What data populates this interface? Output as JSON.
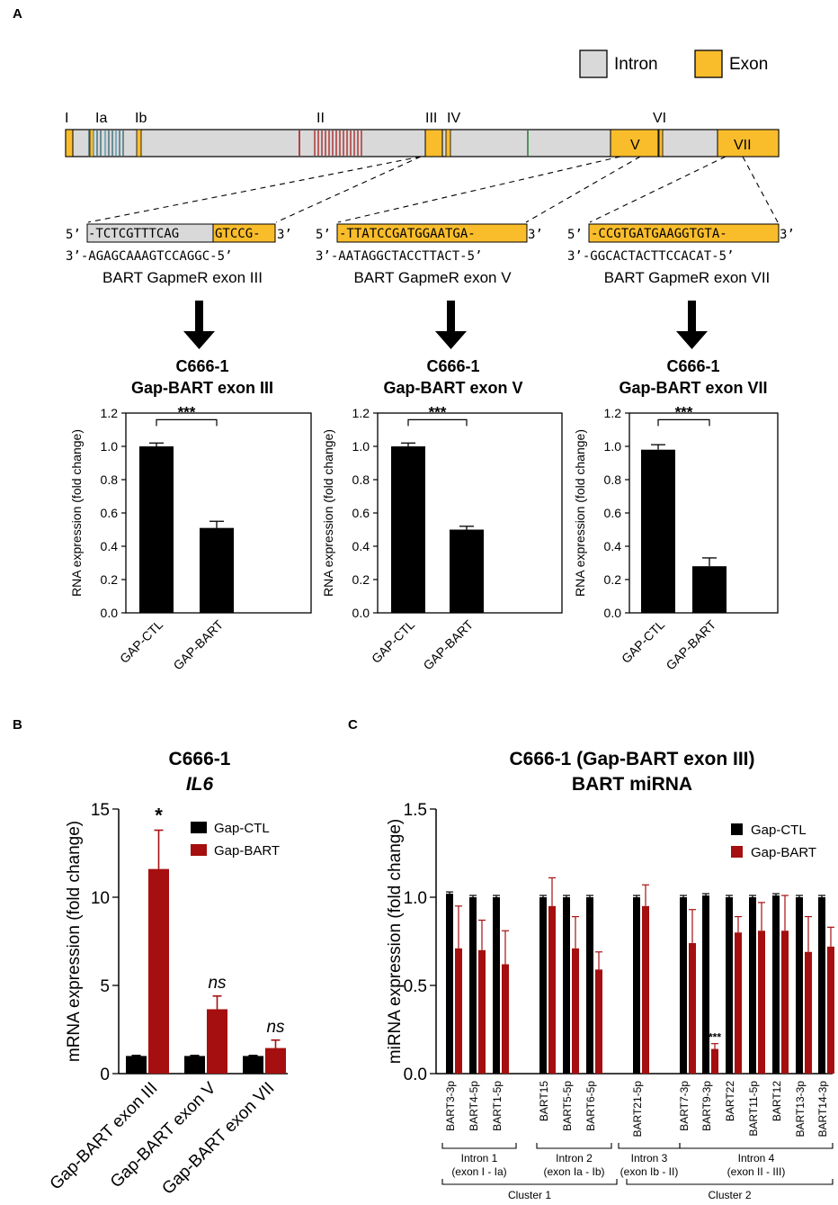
{
  "panels": {
    "a": "A",
    "b": "B",
    "c": "C"
  },
  "legend_a": {
    "intron": "Intron",
    "exon": "Exon"
  },
  "exon_labels": [
    "I",
    "Ia",
    "Ib",
    "II",
    "III",
    "IV",
    "V",
    "VI",
    "VII"
  ],
  "gapmers": [
    {
      "top_gray": "-TCTCGTTTCAG",
      "top_yellow": "GTCCG-",
      "bottom": "3’-AGAGCAAAGTCCAGGC-5’",
      "name": "BART GapmeR exon III"
    },
    {
      "top_gray": "",
      "top_yellow": "-TTATCCGATGGAATGA-",
      "bottom": "3’-AATAGGCTACCTTACT-5’",
      "name": "BART GapmeR exon V"
    },
    {
      "top_gray": "",
      "top_yellow": "-CCGTGATGAAGGTGTA-",
      "bottom": "3’-GGCACTACTTCCACAT-5’",
      "name": "BART GapmeR exon VII"
    }
  ],
  "strand": {
    "five": "5’",
    "three": "3’"
  },
  "colors": {
    "intron": "#d9d9d9",
    "exon": "#f9bd2c",
    "ctl": "#000000",
    "bart": "#a50f0f",
    "mirna_line": "#1f6f8b"
  },
  "chart_data": [
    {
      "type": "bar",
      "title": "C666-1",
      "subtitle": "Gap-BART exon III",
      "categories": [
        "GAP-CTL",
        "GAP-BART"
      ],
      "values": [
        1.0,
        0.51
      ],
      "errors": [
        0.02,
        0.04
      ],
      "ylabel": "RNA expression (fold change)",
      "ylim": [
        0,
        1.2
      ],
      "yticks": [
        "0.0",
        "0.2",
        "0.4",
        "0.6",
        "0.8",
        "1.0",
        "1.2"
      ],
      "annotation": "***"
    },
    {
      "type": "bar",
      "title": "C666-1",
      "subtitle": "Gap-BART exon V",
      "categories": [
        "GAP-CTL",
        "GAP-BART"
      ],
      "values": [
        1.0,
        0.5
      ],
      "errors": [
        0.02,
        0.02
      ],
      "ylabel": "RNA expression (fold change)",
      "ylim": [
        0,
        1.2
      ],
      "yticks": [
        "0.0",
        "0.2",
        "0.4",
        "0.6",
        "0.8",
        "1.0",
        "1.2"
      ],
      "annotation": "***"
    },
    {
      "type": "bar",
      "title": "C666-1",
      "subtitle": "Gap-BART exon VII",
      "categories": [
        "GAP-CTL",
        "GAP-BART"
      ],
      "values": [
        0.98,
        0.28
      ],
      "errors": [
        0.03,
        0.05
      ],
      "ylabel": "RNA expression (fold change)",
      "ylim": [
        0,
        1.2
      ],
      "yticks": [
        "0.0",
        "0.2",
        "0.4",
        "0.6",
        "0.8",
        "1.0",
        "1.2"
      ],
      "annotation": "***"
    },
    {
      "type": "bar",
      "title": "C666-1",
      "subtitle": "IL6",
      "categories": [
        "Gap-BART exon III",
        "Gap-BART exon V",
        "Gap-BART exon VII"
      ],
      "series": [
        {
          "name": "Gap-CTL",
          "values": [
            1.0,
            1.0,
            1.0
          ],
          "errors": [
            0.03,
            0.03,
            0.03
          ]
        },
        {
          "name": "Gap-BART",
          "values": [
            11.6,
            3.65,
            1.45
          ],
          "errors": [
            2.2,
            0.75,
            0.45
          ]
        }
      ],
      "annotations": [
        "*",
        "ns",
        "ns"
      ],
      "ylabel": "mRNA expression (fold change)",
      "ylim": [
        0,
        15
      ],
      "yticks": [
        "0",
        "5",
        "10",
        "15"
      ]
    },
    {
      "type": "bar",
      "title": "C666-1 (Gap-BART exon III)",
      "subtitle": "BART miRNA",
      "categories": [
        "BART3-3p",
        "BART4-5p",
        "BART1-5p",
        "BART15",
        "BART5-5p",
        "BART6-5p",
        "BART21-5p",
        "BART7-3p",
        "BART9-3p",
        "BART22",
        "BART11-5p",
        "BART12",
        "BART13-3p",
        "BART14-3p"
      ],
      "series": [
        {
          "name": "Gap-CTL",
          "values": [
            1.02,
            1.0,
            1.0,
            1.0,
            1.0,
            1.0,
            1.0,
            1.0,
            1.01,
            1.0,
            1.0,
            1.01,
            1.0,
            1.0
          ],
          "errors": [
            0.01,
            0.01,
            0.01,
            0.01,
            0.01,
            0.01,
            0.01,
            0.01,
            0.01,
            0.01,
            0.01,
            0.01,
            0.01,
            0.01
          ]
        },
        {
          "name": "Gap-BART",
          "values": [
            0.71,
            0.7,
            0.62,
            0.95,
            0.71,
            0.59,
            0.95,
            0.74,
            0.14,
            0.8,
            0.81,
            0.81,
            0.69,
            0.72
          ],
          "errors": [
            0.24,
            0.17,
            0.19,
            0.16,
            0.18,
            0.1,
            0.12,
            0.19,
            0.03,
            0.09,
            0.16,
            0.2,
            0.2,
            0.11
          ]
        }
      ],
      "annotations": [
        "",
        "",
        "",
        "",
        "",
        "",
        "",
        "",
        "***",
        "",
        "",
        "",
        "",
        ""
      ],
      "ylabel": "miRNA expression (fold change)",
      "ylim": [
        0,
        1.5
      ],
      "yticks": [
        "0.0",
        "0.5",
        "1.0",
        "1.5"
      ],
      "groups": [
        {
          "label": "Intron 1",
          "sub": "(exon I - Ia)"
        },
        {
          "label": "Intron 2",
          "sub": "(exon Ia - Ib)"
        },
        {
          "label": "Intron 3",
          "sub": "(exon Ib - II)"
        },
        {
          "label": "Intron 4",
          "sub": "(exon II - III)"
        }
      ],
      "clusters": [
        "Cluster 1",
        "Cluster 2"
      ]
    }
  ]
}
